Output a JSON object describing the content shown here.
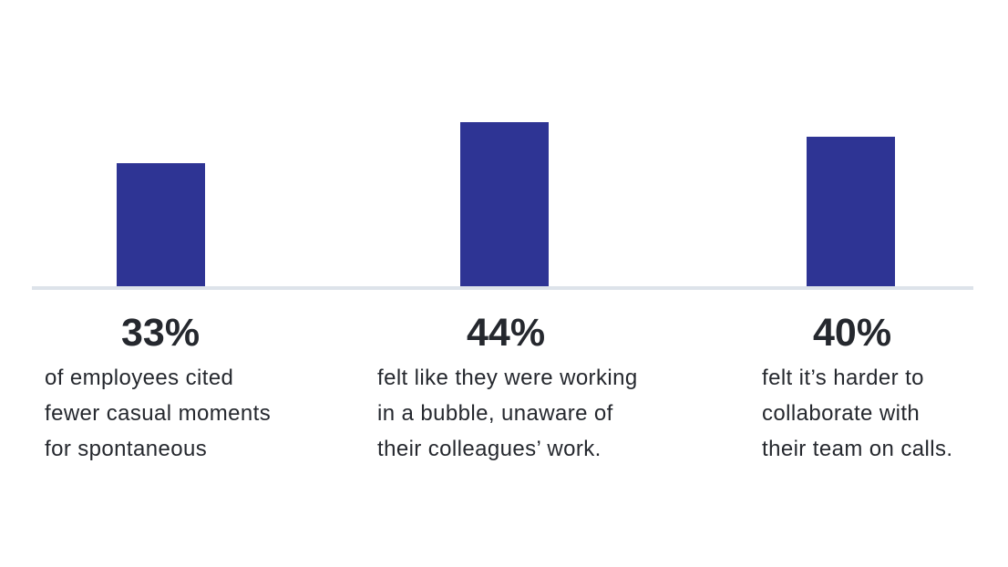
{
  "chart_data": {
    "type": "bar",
    "categories": [
      "33%",
      "44%",
      "40%"
    ],
    "values": [
      33,
      44,
      40
    ],
    "data_labels": [
      "33%",
      "44%",
      "40%"
    ],
    "descriptions": [
      [
        "of employees cited",
        "fewer casual moments",
        "for spontaneous"
      ],
      [
        "felt like they were working",
        "in a bubble, unaware of",
        "their colleagues’ work."
      ],
      [
        "felt it’s harder to",
        "collaborate with",
        "their team on calls."
      ]
    ],
    "ylim": [
      0,
      50
    ],
    "grid": false,
    "legend": "none",
    "bar_color": "#2e3494",
    "baseline_color": "#dde3ea",
    "text_color": "#25282e"
  }
}
